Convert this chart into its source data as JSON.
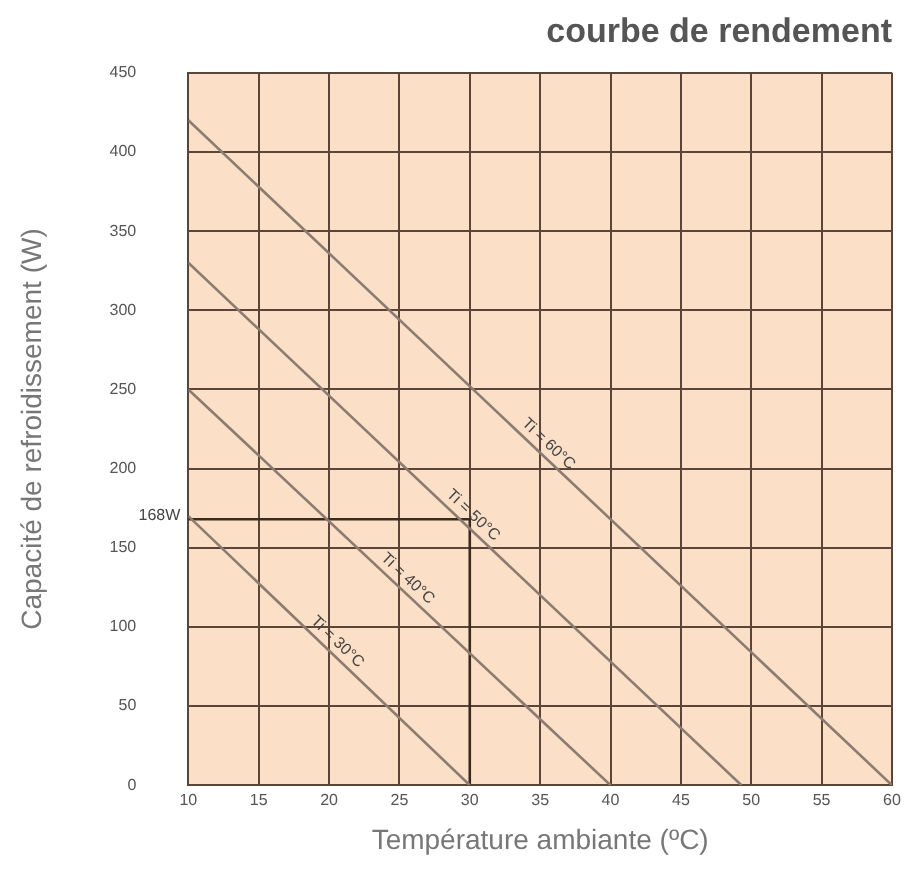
{
  "chart_data": {
    "type": "line",
    "title": "courbe de rendement",
    "xlabel": "Température ambiante (ºC)",
    "ylabel": "Capacité de refroidissement (W)",
    "xlim": [
      10,
      60
    ],
    "xticks": [
      10,
      15,
      20,
      25,
      30,
      35,
      40,
      45,
      50,
      55,
      60
    ],
    "ylim": [
      0,
      450
    ],
    "yticks": [
      0,
      50,
      100,
      150,
      200,
      250,
      300,
      350,
      400,
      450
    ],
    "grid": true,
    "legend": false,
    "marker": "none",
    "line_style": "solid",
    "series": [
      {
        "name": "Ti = 60°C",
        "color": "#8c7b70",
        "x": [
          10,
          60
        ],
        "values": [
          420,
          0
        ]
      },
      {
        "name": "Ti = 50°C",
        "color": "#8c7b70",
        "x": [
          10,
          49.3
        ],
        "values": [
          330,
          0
        ]
      },
      {
        "name": "Ti = 40°C",
        "color": "#8c7b70",
        "x": [
          10,
          40
        ],
        "values": [
          250,
          0
        ]
      },
      {
        "name": "Ti = 30°C",
        "color": "#8c7b70",
        "x": [
          10,
          30
        ],
        "values": [
          170,
          0
        ]
      },
      {
        "color": "#3a2a20",
        "x": [
          10,
          30,
          30
        ],
        "values": [
          168,
          168,
          0
        ]
      }
    ],
    "annotations": [
      {
        "text": "168W",
        "x": 10,
        "y": 168
      }
    ]
  }
}
